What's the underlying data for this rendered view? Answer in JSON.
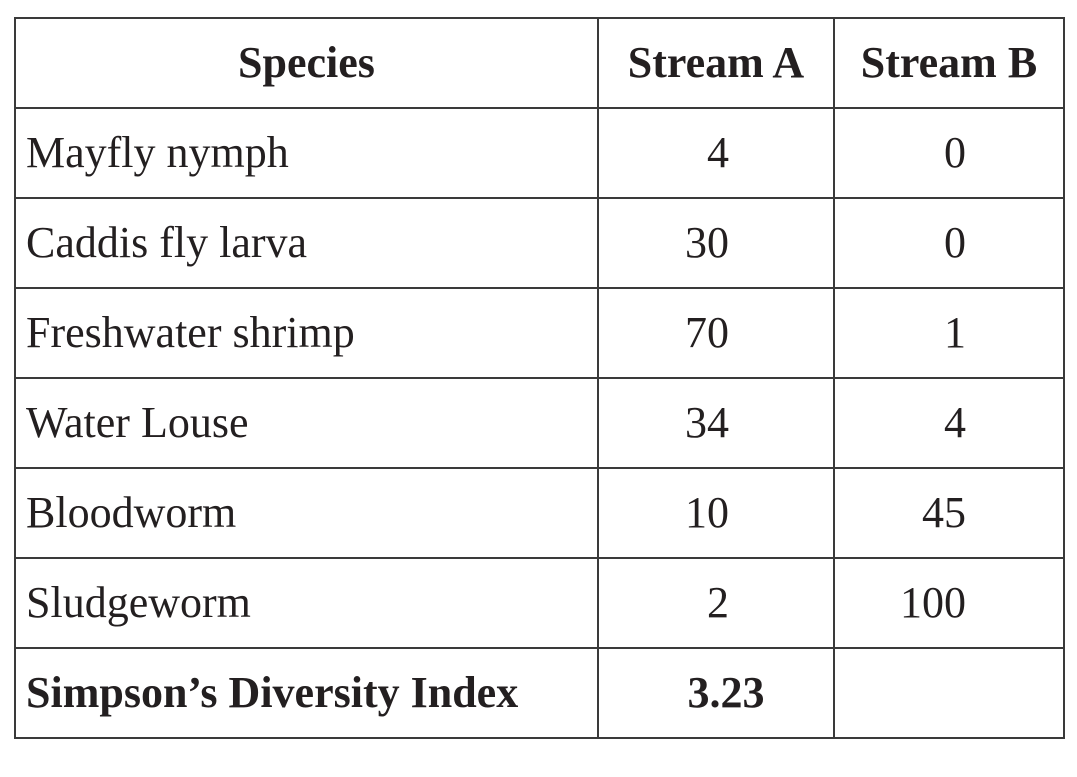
{
  "table": {
    "columns": [
      "Species",
      "Stream A",
      "Stream B"
    ],
    "rows": [
      [
        "Mayfly nymph",
        4,
        0
      ],
      [
        "Caddis fly larva",
        30,
        0
      ],
      [
        "Freshwater shrimp",
        70,
        1
      ],
      [
        "Water Louse",
        34,
        4
      ],
      [
        "Bloodworm",
        10,
        45
      ],
      [
        "Sludgeworm",
        2,
        100
      ]
    ],
    "footer": [
      "Simpson’s Diversity Index",
      3.23
    ]
  }
}
